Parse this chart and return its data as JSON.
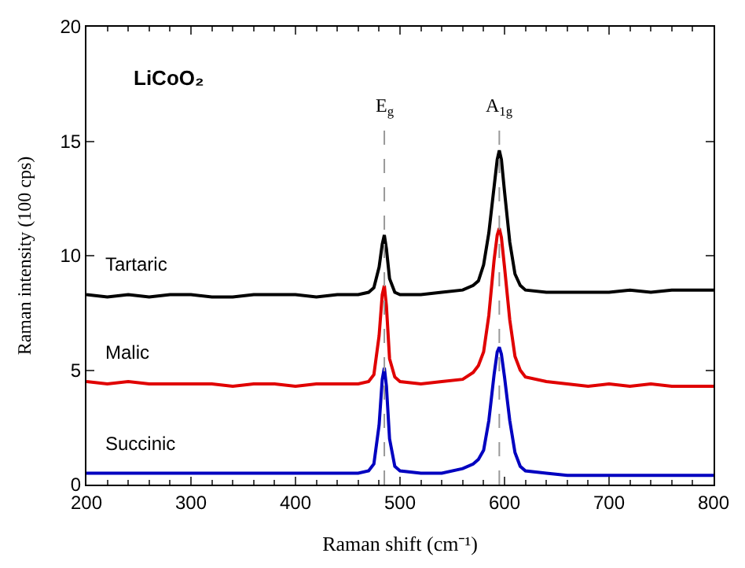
{
  "chart_data": {
    "type": "line",
    "xlabel": "Raman shift (cm⁻¹)",
    "ylabel": "Raman intensity (100 cps)",
    "annotations": [
      "LiCoO₂"
    ],
    "x": [
      200,
      220,
      240,
      260,
      280,
      300,
      320,
      340,
      360,
      380,
      400,
      420,
      440,
      460,
      470,
      475,
      480,
      483,
      485,
      487,
      490,
      495,
      500,
      520,
      540,
      560,
      570,
      575,
      580,
      585,
      590,
      593,
      595,
      597,
      600,
      605,
      610,
      615,
      620,
      640,
      660,
      680,
      700,
      720,
      740,
      760,
      780,
      800
    ],
    "series": [
      {
        "name": "Tartaric",
        "color": "#000000",
        "values": [
          8.3,
          8.2,
          8.3,
          8.2,
          8.3,
          8.3,
          8.2,
          8.2,
          8.3,
          8.3,
          8.3,
          8.2,
          8.3,
          8.3,
          8.4,
          8.6,
          9.5,
          10.5,
          10.9,
          10.3,
          9.0,
          8.4,
          8.3,
          8.3,
          8.4,
          8.5,
          8.7,
          8.9,
          9.6,
          11.0,
          13.0,
          14.2,
          14.6,
          14.2,
          12.8,
          10.6,
          9.2,
          8.7,
          8.5,
          8.4,
          8.4,
          8.4,
          8.4,
          8.5,
          8.4,
          8.5,
          8.5,
          8.5
        ]
      },
      {
        "name": "Malic",
        "color": "#e00000",
        "values": [
          4.5,
          4.4,
          4.5,
          4.4,
          4.4,
          4.4,
          4.4,
          4.3,
          4.4,
          4.4,
          4.3,
          4.4,
          4.4,
          4.4,
          4.5,
          4.8,
          6.5,
          8.3,
          8.7,
          7.8,
          5.5,
          4.7,
          4.5,
          4.4,
          4.5,
          4.6,
          4.9,
          5.2,
          5.8,
          7.4,
          9.8,
          10.9,
          11.2,
          10.8,
          9.5,
          7.2,
          5.6,
          5.0,
          4.7,
          4.5,
          4.4,
          4.3,
          4.4,
          4.3,
          4.4,
          4.3,
          4.3,
          4.3
        ]
      },
      {
        "name": "Succinic",
        "color": "#0000c0",
        "values": [
          0.5,
          0.5,
          0.5,
          0.5,
          0.5,
          0.5,
          0.5,
          0.5,
          0.5,
          0.5,
          0.5,
          0.5,
          0.5,
          0.5,
          0.6,
          0.9,
          2.6,
          4.6,
          5.1,
          4.3,
          2.0,
          0.8,
          0.6,
          0.5,
          0.5,
          0.7,
          0.9,
          1.1,
          1.5,
          2.8,
          4.8,
          5.8,
          6.0,
          5.7,
          4.7,
          2.8,
          1.4,
          0.8,
          0.6,
          0.5,
          0.4,
          0.4,
          0.4,
          0.4,
          0.4,
          0.4,
          0.4,
          0.4
        ]
      }
    ],
    "ref_lines": [
      {
        "axis": "x",
        "value": 485,
        "label": "E$_{g}$",
        "color": "#999999",
        "line_style": "dashed"
      },
      {
        "axis": "x",
        "value": 595,
        "label": "A$_{1g}$",
        "color": "#999999",
        "line_style": "dashed"
      }
    ],
    "xlim": [
      200,
      800
    ],
    "xticks": [
      200,
      300,
      400,
      500,
      600,
      700,
      800
    ],
    "ylim": [
      0,
      20
    ],
    "yticks": [
      0,
      5,
      10,
      15,
      20
    ],
    "legend": false,
    "marker": "none",
    "line_style": "solid"
  }
}
